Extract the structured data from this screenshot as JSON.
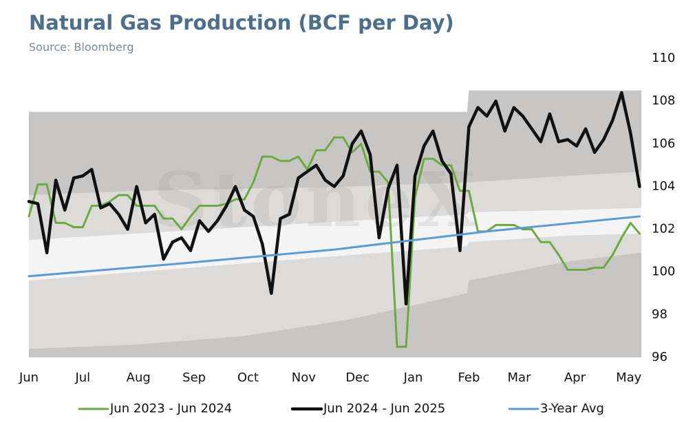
{
  "chart_data": {
    "type": "line",
    "title": "Natural Gas Production (BCF per Day)",
    "subtitle": "Source: Bloomberg",
    "watermark": "StoneX",
    "x": [
      0,
      5,
      10,
      15,
      20,
      25,
      30,
      35,
      40,
      45,
      50,
      55,
      60,
      65,
      70,
      75,
      80,
      85,
      90,
      95,
      100,
      105,
      110,
      115,
      120,
      125,
      130,
      135,
      140,
      145,
      150,
      155,
      160,
      165,
      170,
      175,
      180,
      185,
      190,
      195,
      200,
      205,
      210,
      215,
      220,
      225,
      230,
      235,
      240,
      245,
      250,
      255,
      260,
      265,
      270,
      275,
      280,
      285,
      290,
      295,
      300,
      305,
      310,
      315,
      320,
      325,
      330,
      335,
      340
    ],
    "xlim": [
      0,
      341
    ],
    "xticks": [
      {
        "value": 0,
        "label": "Jun"
      },
      {
        "value": 30,
        "label": "Jul"
      },
      {
        "value": 61,
        "label": "Aug"
      },
      {
        "value": 92,
        "label": "Sep"
      },
      {
        "value": 122,
        "label": "Oct"
      },
      {
        "value": 153,
        "label": "Nov"
      },
      {
        "value": 183,
        "label": "Dec"
      },
      {
        "value": 214,
        "label": "Jan"
      },
      {
        "value": 245,
        "label": "Feb"
      },
      {
        "value": 273,
        "label": "Mar"
      },
      {
        "value": 304,
        "label": "Apr"
      },
      {
        "value": 334,
        "label": "May"
      }
    ],
    "ylim": [
      96,
      110
    ],
    "yticks": [
      96,
      98,
      100,
      102,
      104,
      106,
      108,
      110
    ],
    "bands": [
      {
        "color": "#c8c6c5",
        "x": [
          0,
          60,
          120,
          180,
          244,
          245,
          300,
          341
        ],
        "upper": [
          107.5,
          107.5,
          107.5,
          107.5,
          107.5,
          108.5,
          108.5,
          108.5
        ],
        "lower": [
          96,
          96,
          96,
          96,
          96,
          96,
          96,
          96
        ]
      },
      {
        "color": "#dcdbda",
        "x": [
          0,
          60,
          120,
          180,
          244,
          245,
          300,
          341
        ],
        "upper": [
          103.6,
          103.8,
          103.9,
          104.0,
          104.2,
          104.2,
          104.5,
          104.7
        ],
        "lower": [
          96.4,
          96.6,
          97.0,
          97.8,
          99.0,
          99.6,
          100.5,
          100.9
        ]
      },
      {
        "color": "#f4f4f4",
        "x": [
          0,
          60,
          120,
          180,
          244,
          245,
          300,
          341
        ],
        "upper": [
          101.5,
          101.8,
          102.1,
          102.4,
          102.7,
          102.8,
          102.9,
          103.0
        ],
        "lower": [
          99.6,
          100.0,
          100.4,
          100.8,
          101.2,
          101.4,
          101.7,
          101.8
        ]
      }
    ],
    "series": [
      {
        "name": "Jun 2023 - Jun 2024",
        "color": "#6aaa3f",
        "width": 3,
        "values": [
          102.6,
          104.1,
          104.1,
          102.3,
          102.3,
          102.1,
          102.1,
          103.1,
          103.1,
          103.3,
          103.6,
          103.6,
          103.1,
          103.1,
          103.1,
          102.5,
          102.5,
          102.0,
          102.6,
          103.1,
          103.1,
          103.1,
          103.2,
          103.4,
          103.4,
          104.2,
          105.4,
          105.4,
          105.2,
          105.2,
          105.4,
          104.8,
          105.7,
          105.7,
          106.3,
          106.3,
          105.6,
          106.0,
          104.7,
          104.7,
          104.2,
          96.5,
          96.5,
          103.5,
          105.3,
          105.3,
          105.0,
          105.0,
          103.8,
          103.8,
          101.9,
          101.9,
          102.2,
          102.2,
          102.2,
          102.0,
          102.0,
          101.4,
          101.4,
          100.8,
          100.1,
          100.1,
          100.1,
          100.2,
          100.2,
          100.8,
          101.6,
          102.3,
          101.8
        ]
      },
      {
        "name": "Jun 2024 - Jun 2025",
        "color": "#111111",
        "width": 4.5,
        "values": [
          103.3,
          103.2,
          100.9,
          104.3,
          102.9,
          104.4,
          104.5,
          104.8,
          103.0,
          103.2,
          102.7,
          102.0,
          104.0,
          102.3,
          102.7,
          100.6,
          101.4,
          101.6,
          101.0,
          102.4,
          101.9,
          102.4,
          103.1,
          104.0,
          102.9,
          102.6,
          101.3,
          99.0,
          102.5,
          102.7,
          104.4,
          104.7,
          105.0,
          104.3,
          104.0,
          104.5,
          106.0,
          106.6,
          105.5,
          101.6,
          103.9,
          105.0,
          98.5,
          104.5,
          105.9,
          106.6,
          105.2,
          104.6,
          101.0,
          106.8,
          107.7,
          107.3,
          108.0,
          106.6,
          107.7,
          107.3,
          106.7,
          106.1,
          107.4,
          106.1,
          106.2,
          105.9,
          106.7,
          105.6,
          106.2,
          107.1,
          108.4,
          106.5,
          104.0
        ]
      },
      {
        "name": "3-Year Avg",
        "color": "#5b9bd5",
        "width": 3,
        "x": [
          0,
          85,
          170,
          255,
          340
        ],
        "values": [
          99.8,
          100.4,
          101.05,
          101.9,
          102.6
        ]
      }
    ],
    "legend": "bottom"
  }
}
